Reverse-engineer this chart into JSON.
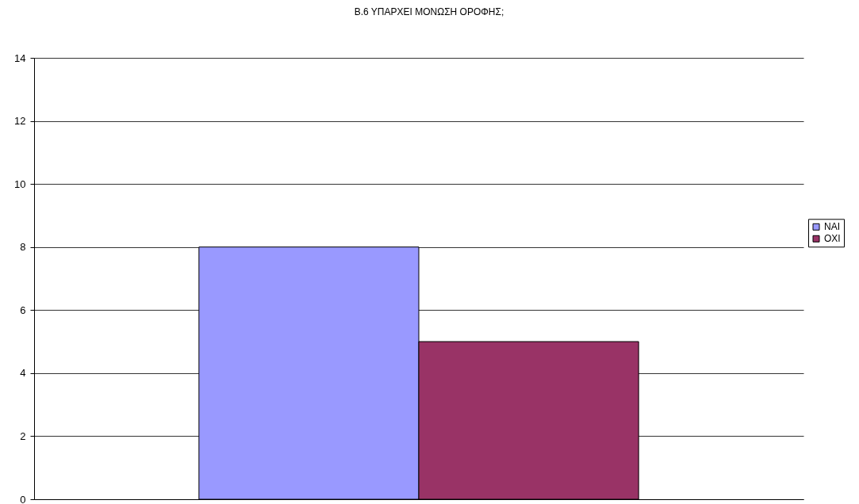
{
  "chart_data": {
    "type": "bar",
    "title": "Β.6 ΥΠΑΡΧΕΙ ΜΟΝΩΣΗ ΟΡΟΦΗΣ;",
    "categories": [
      null
    ],
    "series": [
      {
        "name": "ΝΑΙ",
        "color": "#9999ff",
        "values": [
          8
        ]
      },
      {
        "name": "ΟΧΙ",
        "color": "#993366",
        "values": [
          5
        ]
      }
    ],
    "ylim": [
      0,
      14
    ],
    "yticks": [
      0,
      2,
      4,
      6,
      8,
      10,
      12,
      14
    ],
    "grid": "y",
    "legend": "right"
  }
}
